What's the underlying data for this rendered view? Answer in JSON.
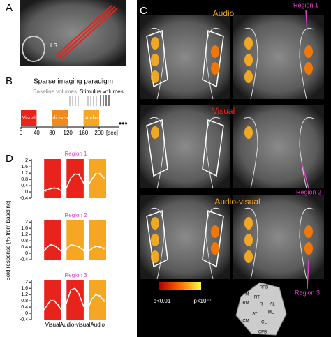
{
  "panel_a": {
    "label": "A",
    "annotation": "LS"
  },
  "panel_b": {
    "label": "B",
    "title": "Sparse imaging paradigm",
    "baseline_label": "Baseline volumes",
    "stimulus_label": "Stimulus volumes",
    "blocks": [
      "Visual",
      "Audio-visual",
      "Audio"
    ],
    "block_colors": [
      "#e8231b",
      "#f08a1c",
      "#f5a623"
    ],
    "time_ticks": [
      0,
      40,
      80,
      120,
      160,
      200
    ],
    "time_unit": "[sec]"
  },
  "panel_c": {
    "label": "C",
    "conditions": [
      "Audio",
      "Visual",
      "Audio-visual"
    ],
    "condition_colors": [
      "#f5a623",
      "#e8231b",
      "#f5a623"
    ],
    "regions": [
      "Region 1",
      "Region 2",
      "Region 3"
    ],
    "region_color": "#e040c8",
    "colorbar": {
      "low": "p<0.01",
      "high": "p<10⁻⁷"
    },
    "areas": [
      "RPB",
      "RTM",
      "RT",
      "RM",
      "R",
      "AL",
      "ML",
      "AT",
      "CM",
      "CL",
      "CPB"
    ]
  },
  "panel_d": {
    "label": "D",
    "y_label": "Bold response [% from baseline]",
    "conditions": [
      "Visual",
      "Audio-visual",
      "Audio"
    ]
  },
  "chart_data": [
    {
      "type": "line",
      "title": "Region 1",
      "title_color": "#e040c8",
      "color": "#ffffff",
      "block_colors": [
        "#e8231b",
        "#e8231b",
        "#f5a623"
      ],
      "values": [
        0.35,
        0.3,
        0.05,
        0.1,
        0.2,
        0.25,
        0.2,
        0.0,
        0.3,
        0.9,
        1.15,
        1.1,
        0.6,
        0.3,
        0.8,
        1.15,
        1.15,
        0.9
      ],
      "errors": [
        0.08,
        0.08,
        0.08,
        0.08,
        0.08,
        0.08,
        0.08,
        0.08,
        0.08,
        0.08,
        0.08,
        0.08,
        0.08,
        0.08,
        0.08,
        0.08,
        0.08,
        0.08
      ],
      "ylim": [
        -0.4,
        2.1
      ],
      "yticks": [
        -0.4,
        0,
        0.4,
        0.8,
        1.2,
        1.6,
        2
      ]
    },
    {
      "type": "line",
      "title": "Region 2",
      "title_color": "#e040c8",
      "color": "#ffffff",
      "block_colors": [
        "#e8231b",
        "#f5a623",
        "#f5a623"
      ],
      "values": [
        0.2,
        0.1,
        0.0,
        0.3,
        0.55,
        0.5,
        0.3,
        0.05,
        0.3,
        0.55,
        0.5,
        0.4,
        0.2,
        0.05,
        0.3,
        0.45,
        0.4,
        0.3
      ],
      "errors": [
        0.08,
        0.08,
        0.08,
        0.08,
        0.08,
        0.08,
        0.08,
        0.08,
        0.08,
        0.08,
        0.08,
        0.08,
        0.08,
        0.08,
        0.08,
        0.08,
        0.08,
        0.08
      ],
      "ylim": [
        -0.4,
        2.1
      ],
      "yticks": [
        -0.4,
        0,
        0.4,
        0.8,
        1.2,
        1.6,
        2
      ]
    },
    {
      "type": "line",
      "title": "Region 3",
      "title_color": "#e040c8",
      "color": "#ffffff",
      "block_colors": [
        "#e8231b",
        "#e8231b",
        "#f5a623"
      ],
      "values": [
        0.3,
        0.1,
        0.0,
        0.4,
        0.8,
        0.8,
        0.5,
        0.1,
        0.7,
        1.5,
        1.6,
        1.2,
        0.5,
        0.2,
        0.9,
        1.2,
        1.1,
        0.8
      ],
      "errors": [
        0.08,
        0.08,
        0.08,
        0.08,
        0.08,
        0.08,
        0.08,
        0.08,
        0.08,
        0.08,
        0.08,
        0.08,
        0.08,
        0.08,
        0.08,
        0.08,
        0.08,
        0.08
      ],
      "ylim": [
        -0.4,
        2.1
      ],
      "yticks": [
        -0.4,
        0,
        0.4,
        0.8,
        1.2,
        1.6,
        2
      ]
    }
  ]
}
